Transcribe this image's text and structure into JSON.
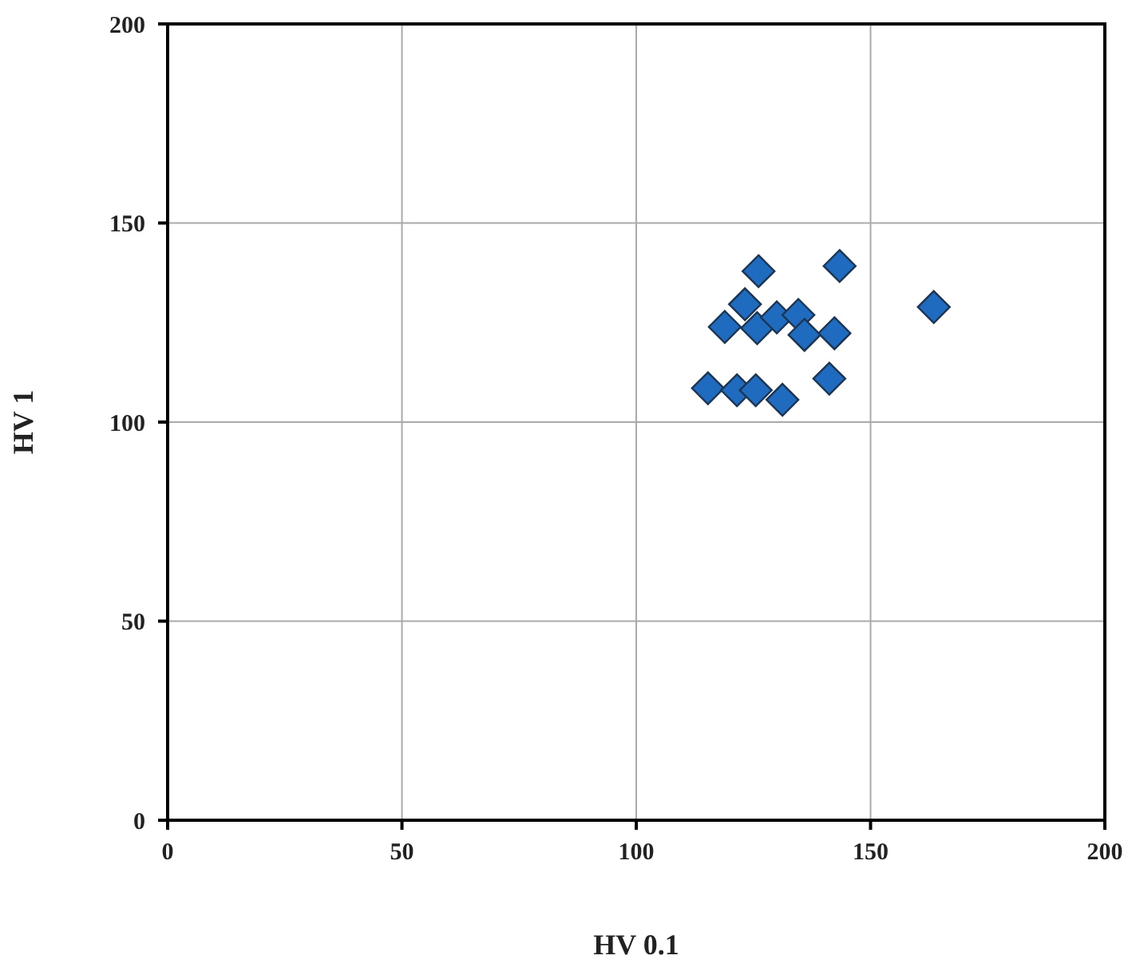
{
  "chart_data": {
    "type": "scatter",
    "xlabel": "HV 0.1",
    "ylabel": "HV 1",
    "x": [
      115.3,
      121.5,
      125.5,
      131.2,
      141.2,
      118.9,
      123.2,
      125.8,
      130.0,
      134.6,
      135.9,
      142.3,
      126.1,
      143.4,
      163.5
    ],
    "values": [
      108.5,
      108,
      108,
      105.6,
      110.9,
      123.9,
      129.6,
      123.6,
      126.3,
      126.9,
      121.9,
      122.3,
      137.9,
      139.2,
      128.9
    ],
    "color": "#1f6bbf",
    "xlim": [
      0,
      200
    ],
    "xticks": [
      0,
      50,
      100,
      150,
      200
    ],
    "ylim": [
      0,
      200
    ],
    "yticks": [
      0,
      50,
      100,
      150,
      200
    ],
    "grid": true,
    "marker": "diamond"
  }
}
